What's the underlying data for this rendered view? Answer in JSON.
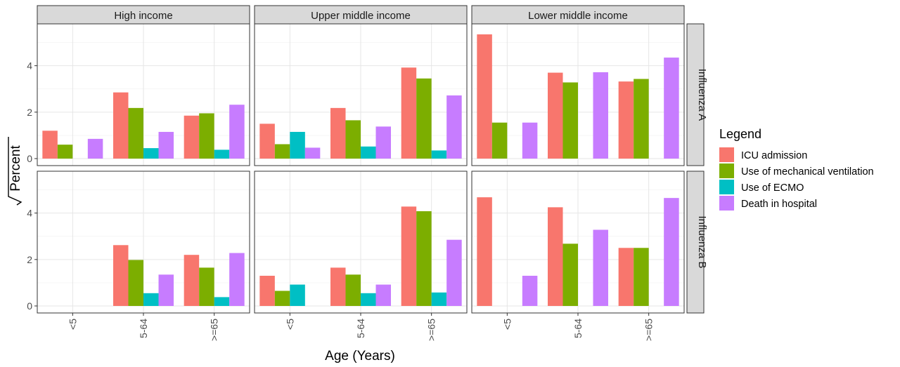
{
  "chart_data": {
    "type": "bar",
    "title": "",
    "xlabel": "Age (Years)",
    "ylabel": "Percent",
    "ylim": [
      0,
      5.5
    ],
    "yticks": [
      "0",
      "2",
      "4"
    ],
    "categories": [
      "<5",
      "5-64",
      ">=65"
    ],
    "columns": [
      "High income",
      "Upper middle income",
      "Lower middle income"
    ],
    "rows": [
      "Influenza A",
      "Influenza B"
    ],
    "legend": {
      "title": "Legend",
      "position": "right",
      "items": [
        {
          "name": "ICU admission",
          "color": "#F8766D"
        },
        {
          "name": "Use of mechanical ventilation",
          "color": "#7CAE00"
        },
        {
          "name": "Use of ECMO",
          "color": "#00BFC4"
        },
        {
          "name": "Death in hospital",
          "color": "#C77CFF"
        }
      ]
    },
    "grid": true,
    "panels": [
      {
        "row": "Influenza A",
        "column": "High income",
        "values": [
          [
            1.2,
            0.6,
            null,
            0.85
          ],
          [
            2.85,
            2.18,
            0.45,
            1.15
          ],
          [
            1.85,
            1.95,
            0.38,
            2.32
          ]
        ]
      },
      {
        "row": "Influenza A",
        "column": "Upper middle income",
        "values": [
          [
            1.5,
            0.62,
            1.15,
            0.47
          ],
          [
            2.18,
            1.65,
            0.52,
            1.38
          ],
          [
            3.92,
            3.45,
            0.35,
            2.72
          ]
        ]
      },
      {
        "row": "Influenza A",
        "column": "Lower middle income",
        "values": [
          [
            5.35,
            1.55,
            null,
            1.55
          ],
          [
            3.7,
            3.28,
            null,
            3.72
          ],
          [
            3.32,
            3.43,
            null,
            4.35
          ]
        ]
      },
      {
        "row": "Influenza B",
        "column": "High income",
        "values": [
          [
            null,
            null,
            null,
            null
          ],
          [
            2.62,
            1.98,
            0.55,
            1.35
          ],
          [
            2.2,
            1.65,
            0.38,
            2.28
          ]
        ]
      },
      {
        "row": "Influenza B",
        "column": "Upper middle income",
        "values": [
          [
            1.3,
            0.65,
            0.92,
            null
          ],
          [
            1.65,
            1.35,
            0.55,
            0.92
          ],
          [
            4.28,
            4.08,
            0.58,
            2.85
          ]
        ]
      },
      {
        "row": "Influenza B",
        "column": "Lower middle income",
        "values": [
          [
            4.68,
            null,
            null,
            1.3
          ],
          [
            4.25,
            2.68,
            null,
            3.28
          ],
          [
            2.5,
            2.5,
            null,
            4.65
          ]
        ]
      }
    ]
  }
}
